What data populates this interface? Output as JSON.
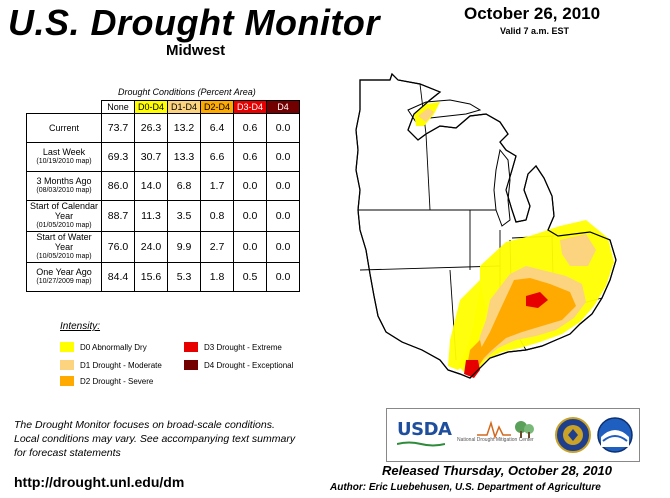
{
  "header": {
    "title": "U.S. Drought Monitor",
    "region": "Midwest",
    "date": "October 26, 2010",
    "valid": "Valid 7 a.m. EST"
  },
  "table": {
    "caption": "Drought Conditions (Percent Area)",
    "columns": [
      "None",
      "D0-D4",
      "D1-D4",
      "D2-D4",
      "D3-D4",
      "D4"
    ],
    "rows": [
      {
        "label": "Current",
        "sub": "",
        "values": [
          "73.7",
          "26.3",
          "13.2",
          "6.4",
          "0.6",
          "0.0"
        ]
      },
      {
        "label": "Last Week",
        "sub": "(10/19/2010 map)",
        "values": [
          "69.3",
          "30.7",
          "13.3",
          "6.6",
          "0.6",
          "0.0"
        ]
      },
      {
        "label": "3 Months Ago",
        "sub": "(08/03/2010 map)",
        "values": [
          "86.0",
          "14.0",
          "6.8",
          "1.7",
          "0.0",
          "0.0"
        ]
      },
      {
        "label": "Start of Calendar Year",
        "sub": "(01/05/2010 map)",
        "values": [
          "88.7",
          "11.3",
          "3.5",
          "0.8",
          "0.0",
          "0.0"
        ]
      },
      {
        "label": "Start of Water Year",
        "sub": "(10/05/2010 map)",
        "values": [
          "76.0",
          "24.0",
          "9.9",
          "2.7",
          "0.0",
          "0.0"
        ]
      },
      {
        "label": "One Year Ago",
        "sub": "(10/27/2009 map)",
        "values": [
          "84.4",
          "15.6",
          "5.3",
          "1.8",
          "0.5",
          "0.0"
        ]
      }
    ]
  },
  "legend": {
    "title": "Intensity:",
    "items": [
      {
        "label": "D0 Abnormally Dry",
        "color": "#ffff00"
      },
      {
        "label": "D1 Drought - Moderate",
        "color": "#fcd37f"
      },
      {
        "label": "D2 Drought - Severe",
        "color": "#ffaa00"
      },
      {
        "label": "D3 Drought - Extreme",
        "color": "#e60000"
      },
      {
        "label": "D4 Drought - Exceptional",
        "color": "#730000"
      }
    ]
  },
  "note": {
    "line1": "The Drought Monitor focuses on broad-scale conditions.",
    "line2": "Local conditions may vary. See accompanying text summary",
    "line3": "for forecast statements"
  },
  "footer": {
    "url": "http://drought.unl.edu/dm",
    "released": "Released Thursday, October 28, 2010",
    "author": "Author: Eric Luebehusen, U.S. Department of Agriculture"
  },
  "logos": {
    "usda": "USDA",
    "ndmc": "National Drought Mitigation Center"
  },
  "map": {
    "colors": {
      "d0": "#ffff00",
      "d1": "#fcd37f",
      "d2": "#ffaa00",
      "d3": "#e60000",
      "d4": "#730000"
    }
  }
}
